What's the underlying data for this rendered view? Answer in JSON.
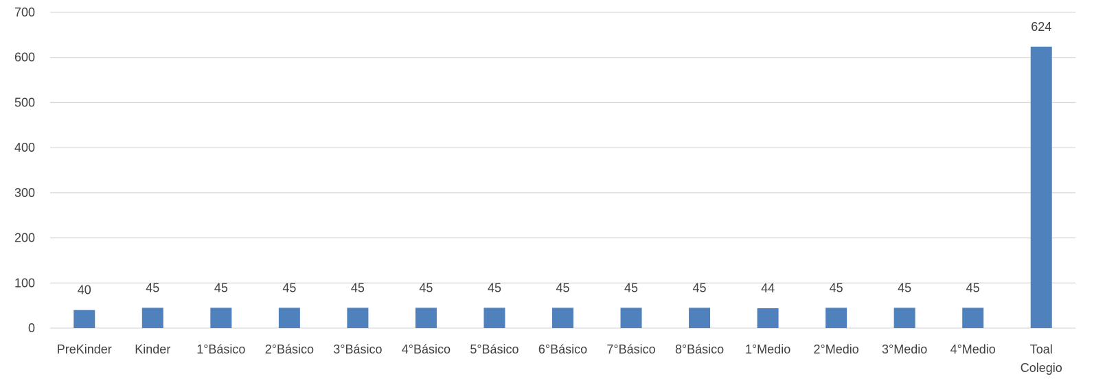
{
  "chart_data": {
    "type": "bar",
    "categories": [
      "PreKinder",
      "Kinder",
      "1°Básico",
      "2°Básico",
      "3°Básico",
      "4°Básico",
      "5°Básico",
      "6°Básico",
      "7°Básico",
      "8°Básico",
      "1°Medio",
      "2°Medio",
      "3°Medio",
      "4°Medio",
      "Toal Colegio"
    ],
    "values": [
      40,
      45,
      45,
      45,
      45,
      45,
      45,
      45,
      45,
      45,
      44,
      45,
      45,
      45,
      624
    ],
    "title": "",
    "xlabel": "",
    "ylabel": "",
    "ylim": [
      0,
      700
    ],
    "yticks": [
      0,
      100,
      200,
      300,
      400,
      500,
      600,
      700
    ],
    "grid": true,
    "legend": "none",
    "bar_color": "#4f81bd",
    "data_labels": true
  }
}
